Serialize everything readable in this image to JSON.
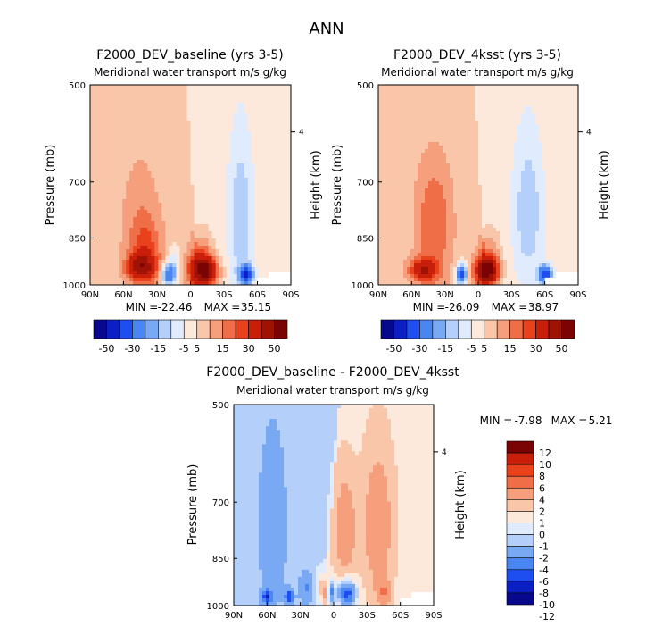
{
  "page_title": "ANN",
  "colors": {
    "scale12": [
      "#08088c",
      "#0b1fc2",
      "#1e4ef0",
      "#4a86f2",
      "#7aa9f4",
      "#b4cff9",
      "#e0ecfd",
      "#fde9dc",
      "#f9c6a9",
      "#f59f7c",
      "#ef6e47",
      "#e9411c",
      "#c81e0a",
      "#9e1306",
      "#7a0303"
    ],
    "diff": [
      "#08088c",
      "#0b1fc2",
      "#1e4ef0",
      "#4a86f2",
      "#7aa9f4",
      "#b4cff9",
      "#e0ecfd",
      "#fde9dc",
      "#f9c6a9",
      "#f59f7c",
      "#ef6e47",
      "#e9411c",
      "#c81e0a",
      "#7a0303"
    ],
    "masked": "#ffffff"
  },
  "chart_data": [
    {
      "type": "heatmap",
      "id": "baseline",
      "title": "F2000_DEV_baseline (yrs 3-5)",
      "subtitle": "Meridional water transport m/s g/kg",
      "ylabel": "Pressure (mb)",
      "ylabel_right": "Height (km)",
      "x_ticks": [
        "90N",
        "60N",
        "30N",
        "0",
        "30S",
        "60S",
        "90S"
      ],
      "y_ticks": [
        500,
        700,
        850,
        1000
      ],
      "y_right_ticks": [
        "4"
      ],
      "stats": {
        "min_label": "MIN =",
        "min": "-22.46",
        "max_label": "MAX =",
        "max": "35.15"
      },
      "colorbar_labels": [
        "-50",
        "-30",
        "-15",
        "-5",
        "5",
        "15",
        "30",
        "50"
      ],
      "features": [
        {
          "lat": 45,
          "p": 940,
          "value": 25,
          "wlat": 12,
          "wp": 40
        },
        {
          "lat": 40,
          "p": 900,
          "value": 12,
          "wlat": 14,
          "wp": 110
        },
        {
          "lat": 45,
          "p": 820,
          "value": 6,
          "wlat": 18,
          "wp": 200
        },
        {
          "lat": 20,
          "p": 965,
          "value": -30,
          "wlat": 6,
          "wp": 35
        },
        {
          "lat": 15,
          "p": 930,
          "value": -10,
          "wlat": 5,
          "wp": 60
        },
        {
          "lat": -12,
          "p": 955,
          "value": 45,
          "wlat": 12,
          "wp": 50
        },
        {
          "lat": -10,
          "p": 900,
          "value": 12,
          "wlat": 10,
          "wp": 80
        },
        {
          "lat": -45,
          "p": 800,
          "value": -12,
          "wlat": 10,
          "wp": 200
        },
        {
          "lat": -50,
          "p": 965,
          "value": -35,
          "wlat": 6,
          "wp": 30
        }
      ],
      "background": {
        "boundary_top": 3,
        "boundary_bottom": -8,
        "north_value": 2,
        "south_value": -3
      }
    },
    {
      "type": "heatmap",
      "id": "4ksst",
      "title": "F2000_DEV_4ksst (yrs 3-5)",
      "subtitle": "Meridional water transport m/s g/kg",
      "ylabel": "Pressure (mb)",
      "ylabel_right": "Height (km)",
      "x_ticks": [
        "90N",
        "60N",
        "30N",
        "0",
        "30S",
        "60S",
        "90S"
      ],
      "y_ticks": [
        500,
        700,
        850,
        1000
      ],
      "y_right_ticks": [
        "4"
      ],
      "stats": {
        "min_label": "MIN =",
        "min": "-26.09",
        "max_label": "MAX =",
        "max": "38.97"
      },
      "colorbar_labels": [
        "-50",
        "-30",
        "-15",
        "-5",
        "5",
        "15",
        "30",
        "50"
      ],
      "features": [
        {
          "lat": 50,
          "p": 950,
          "value": 25,
          "wlat": 12,
          "wp": 35
        },
        {
          "lat": 40,
          "p": 860,
          "value": 10,
          "wlat": 16,
          "wp": 170
        },
        {
          "lat": 40,
          "p": 740,
          "value": 5,
          "wlat": 16,
          "wp": 130
        },
        {
          "lat": 15,
          "p": 965,
          "value": -35,
          "wlat": 5,
          "wp": 35
        },
        {
          "lat": -8,
          "p": 955,
          "value": 45,
          "wlat": 10,
          "wp": 45
        },
        {
          "lat": -10,
          "p": 905,
          "value": 12,
          "wlat": 10,
          "wp": 80
        },
        {
          "lat": -45,
          "p": 780,
          "value": -12,
          "wlat": 12,
          "wp": 180
        },
        {
          "lat": -60,
          "p": 965,
          "value": -35,
          "wlat": 6,
          "wp": 30
        }
      ],
      "background": {
        "boundary_top": 3,
        "boundary_bottom": -8,
        "north_value": 2,
        "south_value": -3
      }
    },
    {
      "type": "heatmap",
      "id": "difference",
      "title": "F2000_DEV_baseline - F2000_DEV_4ksst",
      "subtitle": "Meridional water transport m/s g/kg",
      "ylabel": "Pressure (mb)",
      "ylabel_right": "Height (km)",
      "x_ticks": [
        "90N",
        "60N",
        "30N",
        "0",
        "30S",
        "60S",
        "90S"
      ],
      "y_ticks": [
        500,
        700,
        850,
        1000
      ],
      "y_right_ticks": [
        "4"
      ],
      "stats": {
        "min_label": "MIN =",
        "min": "-7.98",
        "max_label": "MAX =",
        "max": "5.21"
      },
      "colorbar_labels": [
        "12",
        "10",
        "8",
        "6",
        "4",
        "2",
        "1",
        "0",
        "-1",
        "-2",
        "-4",
        "-6",
        "-8",
        "-10",
        "-12"
      ],
      "features": [
        {
          "lat": 55,
          "p": 760,
          "value": -2.5,
          "wlat": 12,
          "wp": 220
        },
        {
          "lat": 60,
          "p": 970,
          "value": -6,
          "wlat": 5,
          "wp": 25
        },
        {
          "lat": 40,
          "p": 970,
          "value": -6,
          "wlat": 4,
          "wp": 25
        },
        {
          "lat": 25,
          "p": 940,
          "value": -3,
          "wlat": 6,
          "wp": 50
        },
        {
          "lat": 10,
          "p": 940,
          "value": 3,
          "wlat": 5,
          "wp": 50
        },
        {
          "lat": 2,
          "p": 955,
          "value": -5,
          "wlat": 3,
          "wp": 40
        },
        {
          "lat": -12,
          "p": 960,
          "value": -8,
          "wlat": 8,
          "wp": 40
        },
        {
          "lat": -10,
          "p": 770,
          "value": 2.5,
          "wlat": 10,
          "wp": 150
        },
        {
          "lat": -40,
          "p": 760,
          "value": 2.5,
          "wlat": 14,
          "wp": 200
        },
        {
          "lat": -45,
          "p": 955,
          "value": 3,
          "wlat": 6,
          "wp": 40
        }
      ],
      "background": {
        "boundary_top": -5,
        "boundary_bottom": 10,
        "north_value": -1.2,
        "south_value": 0.6
      }
    }
  ]
}
